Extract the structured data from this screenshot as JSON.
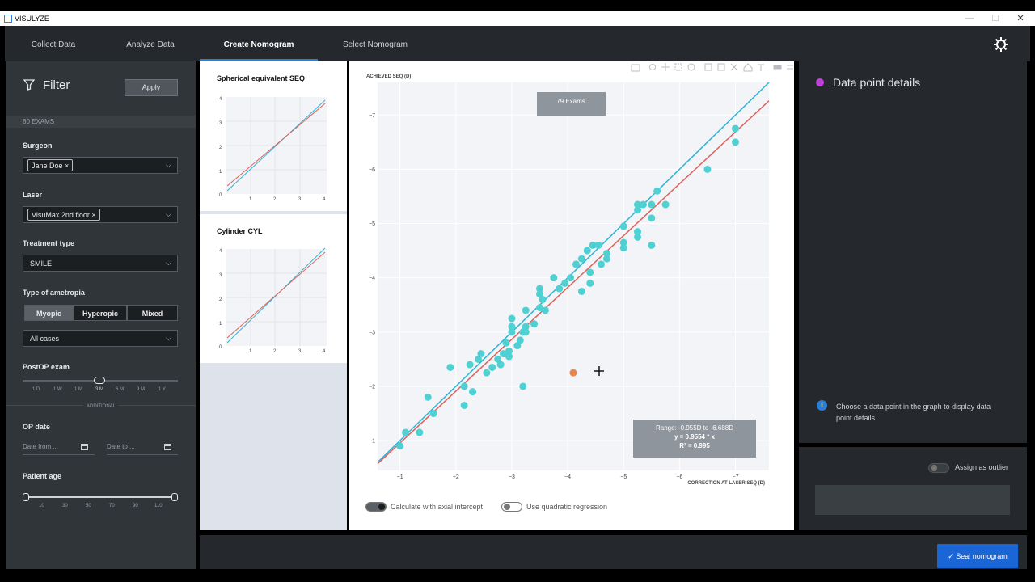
{
  "window": {
    "title": "VISULYZE",
    "minimize": "—",
    "maximize": "☐",
    "close": "✕"
  },
  "nav": {
    "tabs": [
      "Collect Data",
      "Analyze Data",
      "Create Nomogram",
      "Select Nomogram"
    ],
    "active": 2,
    "settings_icon": "gear-icon"
  },
  "filter": {
    "title": "Filter",
    "apply": "Apply",
    "exam_count": "80 EXAMS",
    "surgeon": {
      "label": "Surgeon",
      "chip": "Jane Doe"
    },
    "laser": {
      "label": "Laser",
      "chip": "VisuMax 2nd floor"
    },
    "treatment": {
      "label": "Treatment type",
      "value": "SMILE"
    },
    "ametropia": {
      "label": "Type of ametropia",
      "options": [
        "Myopic",
        "Hyperopic",
        "Mixed"
      ],
      "selected": "Myopic",
      "cases": "All cases"
    },
    "postop": {
      "label": "PostOP exam",
      "ticks": [
        "1 D",
        "1 W",
        "1 M",
        "3 M",
        "6 M",
        "9 M",
        "1 Y"
      ],
      "selected": "3 M"
    },
    "additional": "ADDITIONAL",
    "op_date": {
      "label": "OP date",
      "from_placeholder": "Date from ...",
      "to_placeholder": "Date to ..."
    },
    "patient_age": {
      "label": "Patient age",
      "ticks": [
        "10",
        "30",
        "50",
        "70",
        "90",
        "110"
      ],
      "range": [
        10,
        110
      ]
    }
  },
  "mini_charts": [
    {
      "title": "Spherical equivalent SEQ",
      "yticks": [
        "4",
        "3",
        "2",
        "1",
        "0"
      ],
      "xticks": [
        "1",
        "2",
        "3",
        "4"
      ]
    },
    {
      "title": "Cylinder CYL",
      "yticks": [
        "4",
        "3",
        "2",
        "1",
        "0"
      ],
      "xticks": [
        "1",
        "2",
        "3",
        "4"
      ]
    }
  ],
  "chart_data": {
    "type": "scatter",
    "xlabel": "CORRECTION AT LASER SEQ (D)",
    "ylabel": "ACHIEVED SEQ (D)",
    "xlim": [
      -0.6,
      -7.6
    ],
    "ylim": [
      -0.45,
      -7.6
    ],
    "xticks": [
      -1,
      -2,
      -3,
      -4,
      -5,
      -6,
      -7
    ],
    "yticks": [
      -1,
      -2,
      -3,
      -4,
      -5,
      -6,
      -7
    ],
    "badge": "79 Exams",
    "annotation": [
      "Range: -0.955D to -6.688D",
      "y = 0.9554 * x",
      "R² = 0.995"
    ],
    "identity_color": "#2fb3d6",
    "regression_color": "#e0605a",
    "point_color": "#4fd1d4",
    "highlight_color": "#e8864f",
    "highlight_point": {
      "x": -4.1,
      "y": -2.25
    },
    "points": [
      [
        -1.0,
        -0.9
      ],
      [
        -1.1,
        -1.15
      ],
      [
        -1.35,
        -1.15
      ],
      [
        -1.5,
        -1.8
      ],
      [
        -1.6,
        -1.5
      ],
      [
        -1.9,
        -2.35
      ],
      [
        -2.15,
        -1.65
      ],
      [
        -2.15,
        -2.0
      ],
      [
        -2.25,
        -2.4
      ],
      [
        -2.3,
        -1.9
      ],
      [
        -2.4,
        -2.5
      ],
      [
        -2.45,
        -2.6
      ],
      [
        -2.55,
        -2.25
      ],
      [
        -2.65,
        -2.35
      ],
      [
        -2.8,
        -2.4
      ],
      [
        -2.75,
        -2.5
      ],
      [
        -2.85,
        -2.6
      ],
      [
        -2.9,
        -2.8
      ],
      [
        -2.95,
        -2.65
      ],
      [
        -2.95,
        -2.55
      ],
      [
        -3.0,
        -3.0
      ],
      [
        -3.0,
        -3.1
      ],
      [
        -3.0,
        -3.25
      ],
      [
        -3.1,
        -2.75
      ],
      [
        -3.15,
        -2.85
      ],
      [
        -3.2,
        -3.0
      ],
      [
        -3.25,
        -3.0
      ],
      [
        -3.25,
        -3.1
      ],
      [
        -3.25,
        -3.4
      ],
      [
        -3.2,
        -2.0
      ],
      [
        -3.4,
        -3.15
      ],
      [
        -3.5,
        -3.45
      ],
      [
        -3.55,
        -3.6
      ],
      [
        -3.5,
        -3.7
      ],
      [
        -3.5,
        -3.8
      ],
      [
        -3.6,
        -3.4
      ],
      [
        -3.75,
        -4.0
      ],
      [
        -3.85,
        -3.8
      ],
      [
        -3.95,
        -3.9
      ],
      [
        -4.05,
        -4.0
      ],
      [
        -4.15,
        -4.25
      ],
      [
        -4.25,
        -4.35
      ],
      [
        -4.35,
        -4.5
      ],
      [
        -4.45,
        -4.6
      ],
      [
        -4.55,
        -4.6
      ],
      [
        -4.25,
        -3.75
      ],
      [
        -4.4,
        -3.9
      ],
      [
        -4.4,
        -4.1
      ],
      [
        -4.6,
        -4.25
      ],
      [
        -4.7,
        -4.35
      ],
      [
        -4.7,
        -4.45
      ],
      [
        -5.0,
        -4.55
      ],
      [
        -5.0,
        -4.65
      ],
      [
        -5.0,
        -4.95
      ],
      [
        -5.25,
        -4.75
      ],
      [
        -5.25,
        -4.85
      ],
      [
        -5.25,
        -5.25
      ],
      [
        -5.25,
        -5.35
      ],
      [
        -5.35,
        -5.35
      ],
      [
        -5.5,
        -5.35
      ],
      [
        -5.5,
        -5.1
      ],
      [
        -5.5,
        -4.6
      ],
      [
        -5.6,
        -5.6
      ],
      [
        -5.75,
        -5.35
      ],
      [
        -6.5,
        -6.0
      ],
      [
        -7.0,
        -6.5
      ],
      [
        -7.0,
        -6.75
      ]
    ],
    "toggles": [
      {
        "label": "Calculate with axial intercept",
        "on": true
      },
      {
        "label": "Use quadratic regression",
        "on": false
      }
    ]
  },
  "details": {
    "title": "Data point details",
    "dot_color": "#c23fd9",
    "hint": [
      "Choose a data point in the graph to display data",
      "point details."
    ],
    "outlier_label": "Assign as outlier"
  },
  "seal": {
    "label": "Seal nomogram",
    "check": "✓"
  }
}
